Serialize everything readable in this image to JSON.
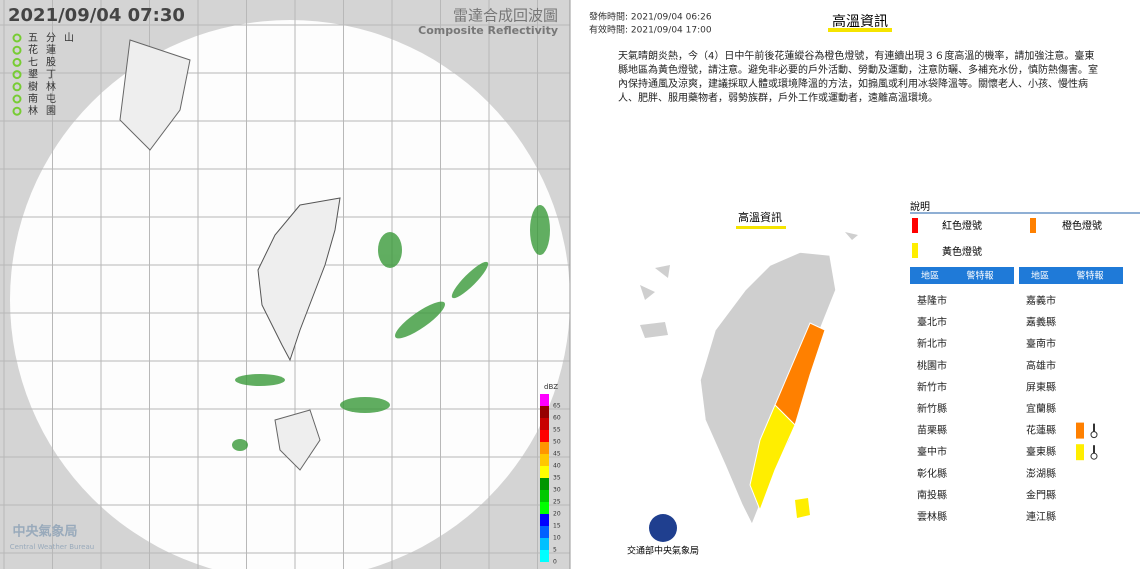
{
  "radar": {
    "timestamp": "2021/09/04  07:30",
    "title": "雷達合成回波圖",
    "subtitle": "Composite Reflectivity",
    "stations": [
      "五分山",
      "花蓮",
      "七股",
      "墾丁",
      "樹林",
      "南屯",
      "林園"
    ],
    "colorbar": {
      "unit": "dBZ",
      "ticks": [
        0,
        5,
        10,
        15,
        20,
        25,
        30,
        35,
        40,
        45,
        50,
        55,
        60,
        65
      ]
    },
    "logo": {
      "name": "中央氣象局",
      "english": "Central Weather Bureau"
    }
  },
  "advisory": {
    "issued": "發佈時間: 2021/09/04 06:26",
    "valid": "有效時間: 2021/09/04 17:00",
    "title": "高溫資訊",
    "text": "天氣晴朗炎熱，今（4）日中午前後花蓮縱谷為橙色燈號，有連續出現３６度高溫的機率，請加強注意。臺東縣地區為黃色燈號，請注意。避免非必要的戶外活動、勞動及運動，注意防曬、多補充水份，慎防熱傷害。室內保持通風及涼爽，建議採取人體或環境降溫的方法，如搧風或利用冰袋降溫等。關懷老人、小孩、慢性病人、肥胖、服用藥物者，弱勢族群，戶外工作或運動者，遠離高溫環境。",
    "map_title": "高溫資訊",
    "legend": {
      "title": "說明",
      "red": "紅色燈號",
      "orange": "橙色燈號",
      "yellow": "黃色燈號"
    },
    "table": {
      "headers": [
        "地區",
        "警特報",
        "地區",
        "警特報"
      ],
      "left": [
        {
          "name": "基隆市"
        },
        {
          "name": "臺北市"
        },
        {
          "name": "新北市"
        },
        {
          "name": "桃園市"
        },
        {
          "name": "新竹市"
        },
        {
          "name": "新竹縣"
        },
        {
          "name": "苗栗縣"
        },
        {
          "name": "臺中市"
        },
        {
          "name": "彰化縣"
        },
        {
          "name": "南投縣"
        },
        {
          "name": "雲林縣"
        }
      ],
      "right": [
        {
          "name": "嘉義市"
        },
        {
          "name": "嘉義縣"
        },
        {
          "name": "臺南市"
        },
        {
          "name": "高雄市"
        },
        {
          "name": "屏東縣"
        },
        {
          "name": "宜蘭縣"
        },
        {
          "name": "花蓮縣",
          "level": "orange"
        },
        {
          "name": "臺東縣",
          "level": "yellow"
        },
        {
          "name": "澎湖縣"
        },
        {
          "name": "金門縣"
        },
        {
          "name": "連江縣"
        }
      ]
    },
    "footer": "交通部中央氣象局"
  }
}
